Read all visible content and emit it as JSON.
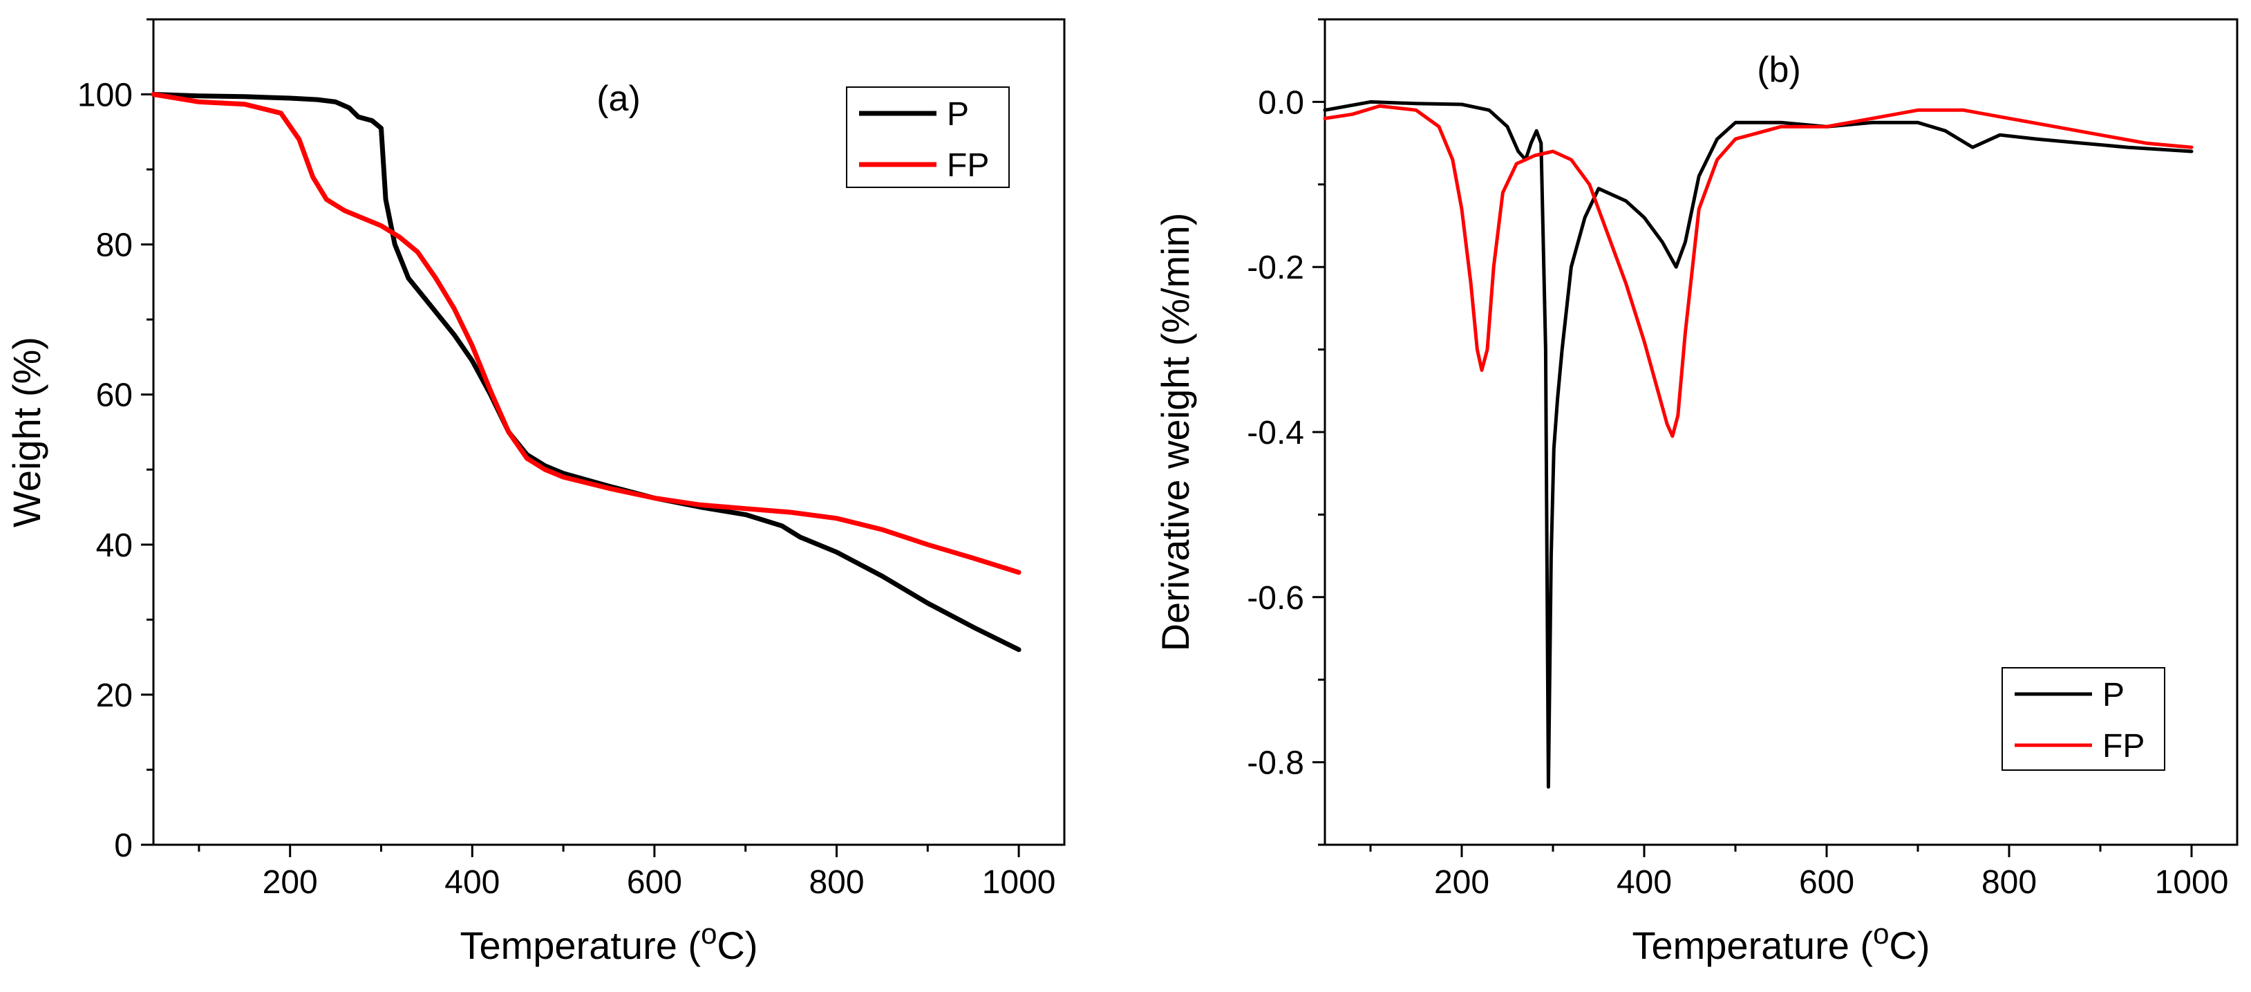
{
  "chart_data": [
    {
      "type": "line",
      "panel_label": "(a)",
      "xlabel": "Temperature (",
      "xlabel_sup": "o",
      "xlabel_end": "C)",
      "ylabel": "Weight (%)",
      "xlim": [
        50,
        1050
      ],
      "ylim": [
        0,
        110
      ],
      "x_ticks": [
        "200",
        "400",
        "600",
        "800",
        "1000"
      ],
      "y_ticks": [
        "0",
        "20",
        "40",
        "60",
        "80",
        "100"
      ],
      "legend": [
        "P",
        "FP"
      ],
      "legend_position": "top-right",
      "series": [
        {
          "name": "P",
          "color": "#000000",
          "x": [
            50,
            100,
            150,
            200,
            230,
            250,
            265,
            275,
            290,
            300,
            305,
            315,
            330,
            350,
            380,
            400,
            420,
            440,
            460,
            480,
            500,
            550,
            600,
            650,
            700,
            740,
            760,
            800,
            850,
            900,
            950,
            1000
          ],
          "y": [
            100,
            99.8,
            99.7,
            99.5,
            99.3,
            99.0,
            98.2,
            97.0,
            96.5,
            95.5,
            86.0,
            80.0,
            75.5,
            72.5,
            68.0,
            64.5,
            60.0,
            55.0,
            52.0,
            50.5,
            49.5,
            47.8,
            46.2,
            45.0,
            44.0,
            42.5,
            41.0,
            39.0,
            35.8,
            32.2,
            29.0,
            26.0
          ]
        },
        {
          "name": "FP",
          "color": "#ff0000",
          "x": [
            50,
            100,
            150,
            190,
            210,
            225,
            240,
            260,
            280,
            300,
            320,
            340,
            360,
            380,
            400,
            420,
            440,
            460,
            480,
            500,
            550,
            600,
            650,
            700,
            750,
            800,
            850,
            900,
            950,
            1000
          ],
          "y": [
            100,
            99.0,
            98.7,
            97.5,
            94.0,
            89.0,
            86.0,
            84.5,
            83.5,
            82.5,
            81.0,
            79.0,
            75.5,
            71.5,
            66.5,
            60.5,
            55.0,
            51.5,
            50.0,
            49.0,
            47.5,
            46.2,
            45.3,
            44.8,
            44.3,
            43.5,
            42.0,
            40.0,
            38.2,
            36.3
          ]
        }
      ]
    },
    {
      "type": "line",
      "panel_label": "(b)",
      "xlabel": "Temperature (",
      "xlabel_sup": "o",
      "xlabel_end": "C)",
      "ylabel": "Derivative weight (%/min)",
      "xlim": [
        50,
        1050
      ],
      "ylim": [
        -0.9,
        0.1
      ],
      "x_ticks": [
        "200",
        "400",
        "600",
        "800",
        "1000"
      ],
      "y_ticks": [
        "-0.8",
        "-0.6",
        "-0.4",
        "-0.2",
        "0.0"
      ],
      "legend": [
        "P",
        "FP"
      ],
      "legend_position": "bottom-right",
      "series": [
        {
          "name": "P",
          "color": "#000000",
          "x": [
            50,
            100,
            150,
            200,
            230,
            250,
            262,
            270,
            276,
            282,
            287,
            292,
            295,
            298,
            301,
            305,
            310,
            320,
            335,
            350,
            380,
            400,
            420,
            435,
            445,
            460,
            480,
            500,
            550,
            600,
            650,
            700,
            730,
            760,
            790,
            830,
            880,
            930,
            1000
          ],
          "y": [
            -0.01,
            0.0,
            -0.002,
            -0.003,
            -0.01,
            -0.03,
            -0.06,
            -0.07,
            -0.05,
            -0.035,
            -0.05,
            -0.3,
            -0.83,
            -0.55,
            -0.42,
            -0.36,
            -0.3,
            -0.2,
            -0.14,
            -0.105,
            -0.12,
            -0.14,
            -0.17,
            -0.2,
            -0.17,
            -0.09,
            -0.045,
            -0.025,
            -0.025,
            -0.03,
            -0.025,
            -0.025,
            -0.035,
            -0.055,
            -0.04,
            -0.045,
            -0.05,
            -0.055,
            -0.06
          ]
        },
        {
          "name": "FP",
          "color": "#ff0000",
          "x": [
            50,
            80,
            110,
            150,
            175,
            190,
            200,
            210,
            217,
            222,
            228,
            235,
            245,
            260,
            280,
            300,
            320,
            340,
            360,
            380,
            400,
            415,
            425,
            431,
            437,
            445,
            460,
            480,
            500,
            550,
            600,
            650,
            700,
            750,
            800,
            850,
            900,
            950,
            1000
          ],
          "y": [
            -0.02,
            -0.015,
            -0.005,
            -0.01,
            -0.03,
            -0.07,
            -0.13,
            -0.22,
            -0.3,
            -0.325,
            -0.3,
            -0.2,
            -0.11,
            -0.075,
            -0.065,
            -0.06,
            -0.07,
            -0.1,
            -0.16,
            -0.22,
            -0.29,
            -0.35,
            -0.39,
            -0.405,
            -0.38,
            -0.28,
            -0.13,
            -0.07,
            -0.045,
            -0.03,
            -0.03,
            -0.02,
            -0.01,
            -0.01,
            -0.02,
            -0.03,
            -0.04,
            -0.05,
            -0.055
          ]
        }
      ]
    }
  ]
}
